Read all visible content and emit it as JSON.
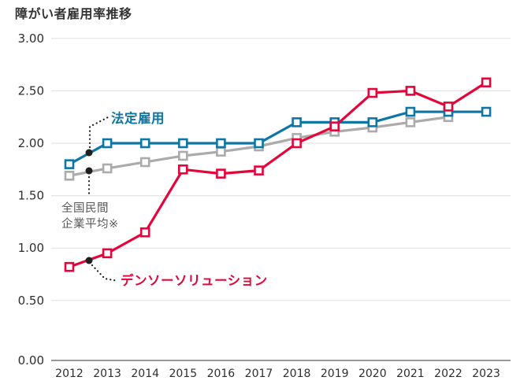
{
  "title": "障がい者雇用率推移",
  "colors": {
    "legal_rate": "#0e76a5",
    "national_average_line": "#ababab",
    "national_average_text": "#595959",
    "denso_solution": "#e3063a",
    "grid": "#e4e4e4",
    "axis": "#8a8a8a",
    "tick_text": "#2e2e2e",
    "annotation_dot": "#1f1f1f"
  },
  "chart_data": {
    "type": "line",
    "title": "障がい者雇用率推移",
    "x": [
      "2012",
      "2013",
      "2014",
      "2015",
      "2016",
      "2017",
      "2018",
      "2019",
      "2020",
      "2021",
      "2022",
      "2023"
    ],
    "yticks": [
      "0.00",
      "0.50",
      "1.00",
      "1.50",
      "2.00",
      "2.50",
      "3.00"
    ],
    "ylim": [
      0,
      3
    ],
    "grid": true,
    "legend_position": "inline-annotations",
    "series": [
      {
        "id": "legal-rate",
        "name": "法定雇用",
        "color": "#0e76a5",
        "marker": "open-square",
        "values": [
          1.8,
          2.0,
          2.0,
          2.0,
          2.0,
          2.0,
          2.2,
          2.2,
          2.2,
          2.3,
          2.3,
          2.3
        ]
      },
      {
        "id": "national-average",
        "name": "全国民間企業平均※",
        "label_lines": [
          "全国民間",
          "企業平均※"
        ],
        "color": "#ababab",
        "marker": "open-square",
        "values": [
          1.69,
          1.76,
          1.82,
          1.88,
          1.92,
          1.97,
          2.05,
          2.11,
          2.15,
          2.2,
          2.25,
          null
        ]
      },
      {
        "id": "denso-solution",
        "name": "デンソーソリューション",
        "color": "#e3063a",
        "marker": "open-square",
        "values": [
          0.82,
          0.95,
          1.15,
          1.75,
          1.71,
          1.74,
          2.0,
          2.16,
          2.48,
          2.5,
          2.35,
          2.58
        ]
      }
    ],
    "annotations": [
      {
        "target": "legal-rate",
        "text": "法定雇用",
        "text_color": "#0e76a5"
      },
      {
        "target": "national-average",
        "lines": [
          "全国民間",
          "企業平均※"
        ],
        "text_color": "#595959"
      },
      {
        "target": "denso-solution",
        "text": "デンソーソリューション",
        "text_color": "#e3063a"
      }
    ]
  }
}
